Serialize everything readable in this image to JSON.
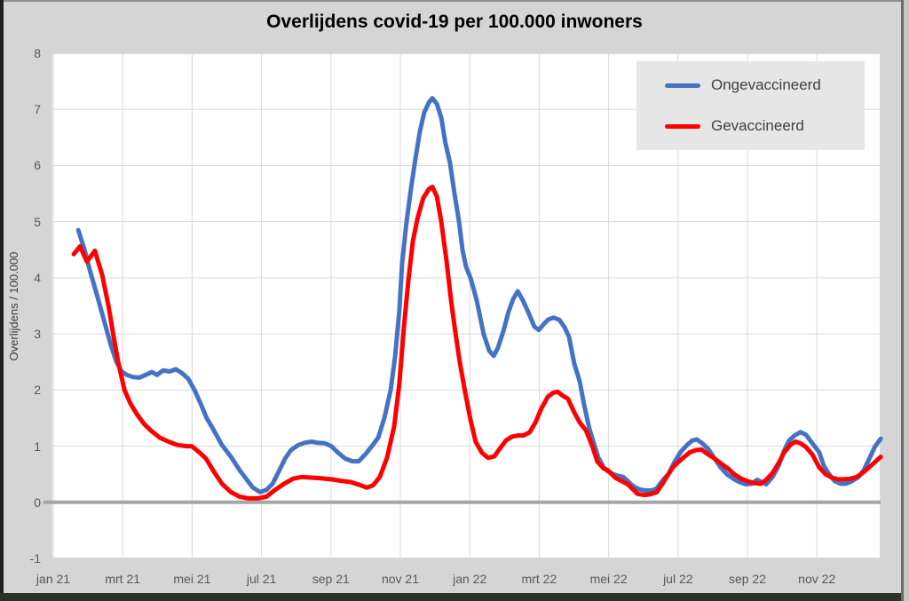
{
  "chart": {
    "title": "Overlijdens covid-19 per 100.000 inwoners",
    "y_axis": {
      "title": "Overlijdens / 100.000",
      "min": -1,
      "max": 8,
      "tick_step": 1,
      "tick_labels": [
        "8",
        "7",
        "6",
        "5",
        "4",
        "3",
        "2",
        "1",
        "0",
        "-1"
      ]
    },
    "x_axis": {
      "tick_labels": [
        "jan 21",
        "mrt 21",
        "mei 21",
        "jul 21",
        "sep 21",
        "nov 21",
        "jan 22",
        "mrt 22",
        "mei 22",
        "jul 22",
        "sep 22",
        "nov 22"
      ],
      "tick_positions": [
        0,
        2,
        4,
        6,
        8,
        10,
        12,
        14,
        16,
        18,
        20,
        22
      ]
    },
    "legend": {
      "items": [
        {
          "label": "Ongevaccineerd",
          "color": "#4472C4"
        },
        {
          "label": "Gevaccineerd",
          "color": "#FF0000"
        }
      ]
    },
    "colors": {
      "canvas_bg": "#d5d5d5",
      "plot_bg": "#ffffff",
      "gridline": "#d9d9d9",
      "zero_line": "#a6a6a6",
      "tick_text": "#595959",
      "legend_bg": "#e6e6e6"
    }
  },
  "chart_data": {
    "type": "line",
    "title": "Overlijdens covid-19 per 100.000 inwoners",
    "xlabel": "",
    "ylabel": "Overlijdens / 100.000",
    "ylim": [
      -1,
      8
    ],
    "xlim_months": [
      -0.05,
      23.85
    ],
    "x_unit": "months (0 = jan 2021 tick, 2 = mrt 2021, ... 22 = nov 2022)",
    "x_tick_positions": [
      0,
      2,
      4,
      6,
      8,
      10,
      12,
      14,
      16,
      18,
      20,
      22
    ],
    "x_tick_labels": [
      "jan 21",
      "mrt 21",
      "mei 21",
      "jul 21",
      "sep 21",
      "nov 21",
      "jan 22",
      "mrt 22",
      "mei 22",
      "jul 22",
      "sep 22",
      "nov 22"
    ],
    "grid": true,
    "zero_line": true,
    "legend_position": "top-right",
    "series": [
      {
        "name": "Ongevaccineerd",
        "color": "#4472C4",
        "line_width": 5,
        "points": [
          [
            0.72,
            4.85
          ],
          [
            0.9,
            4.5
          ],
          [
            1.07,
            4.1
          ],
          [
            1.28,
            3.65
          ],
          [
            1.48,
            3.2
          ],
          [
            1.66,
            2.8
          ],
          [
            1.82,
            2.5
          ],
          [
            1.97,
            2.33
          ],
          [
            2.12,
            2.27
          ],
          [
            2.3,
            2.23
          ],
          [
            2.48,
            2.22
          ],
          [
            2.66,
            2.27
          ],
          [
            2.84,
            2.32
          ],
          [
            2.99,
            2.27
          ],
          [
            3.17,
            2.35
          ],
          [
            3.35,
            2.33
          ],
          [
            3.53,
            2.37
          ],
          [
            3.71,
            2.3
          ],
          [
            3.89,
            2.2
          ],
          [
            4.07,
            2.0
          ],
          [
            4.25,
            1.75
          ],
          [
            4.42,
            1.5
          ],
          [
            4.6,
            1.31
          ],
          [
            4.86,
            1.02
          ],
          [
            5.12,
            0.81
          ],
          [
            5.37,
            0.57
          ],
          [
            5.58,
            0.4
          ],
          [
            5.75,
            0.26
          ],
          [
            5.96,
            0.18
          ],
          [
            6.14,
            0.22
          ],
          [
            6.32,
            0.33
          ],
          [
            6.5,
            0.55
          ],
          [
            6.68,
            0.78
          ],
          [
            6.85,
            0.93
          ],
          [
            7.06,
            1.02
          ],
          [
            7.24,
            1.06
          ],
          [
            7.44,
            1.08
          ],
          [
            7.62,
            1.06
          ],
          [
            7.83,
            1.05
          ],
          [
            8.01,
            1.0
          ],
          [
            8.21,
            0.88
          ],
          [
            8.41,
            0.78
          ],
          [
            8.62,
            0.73
          ],
          [
            8.8,
            0.73
          ],
          [
            9.0,
            0.86
          ],
          [
            9.18,
            1.0
          ],
          [
            9.36,
            1.15
          ],
          [
            9.54,
            1.5
          ],
          [
            9.72,
            2.0
          ],
          [
            9.85,
            2.6
          ],
          [
            9.97,
            3.4
          ],
          [
            10.05,
            4.26
          ],
          [
            10.18,
            5.0
          ],
          [
            10.31,
            5.6
          ],
          [
            10.43,
            6.1
          ],
          [
            10.56,
            6.6
          ],
          [
            10.69,
            6.95
          ],
          [
            10.82,
            7.12
          ],
          [
            10.92,
            7.2
          ],
          [
            11.05,
            7.1
          ],
          [
            11.18,
            6.85
          ],
          [
            11.3,
            6.4
          ],
          [
            11.43,
            6.05
          ],
          [
            11.56,
            5.5
          ],
          [
            11.69,
            5.0
          ],
          [
            11.79,
            4.5
          ],
          [
            11.89,
            4.2
          ],
          [
            12.02,
            4.0
          ],
          [
            12.2,
            3.6
          ],
          [
            12.4,
            3.0
          ],
          [
            12.56,
            2.7
          ],
          [
            12.69,
            2.61
          ],
          [
            12.81,
            2.75
          ],
          [
            12.97,
            3.05
          ],
          [
            13.12,
            3.4
          ],
          [
            13.25,
            3.62
          ],
          [
            13.38,
            3.76
          ],
          [
            13.53,
            3.6
          ],
          [
            13.71,
            3.35
          ],
          [
            13.86,
            3.13
          ],
          [
            13.99,
            3.07
          ],
          [
            14.14,
            3.18
          ],
          [
            14.27,
            3.26
          ],
          [
            14.42,
            3.29
          ],
          [
            14.58,
            3.25
          ],
          [
            14.73,
            3.12
          ],
          [
            14.86,
            2.95
          ],
          [
            15.01,
            2.47
          ],
          [
            15.17,
            2.15
          ],
          [
            15.29,
            1.75
          ],
          [
            15.45,
            1.3
          ],
          [
            15.58,
            1.04
          ],
          [
            15.7,
            0.8
          ],
          [
            15.86,
            0.62
          ],
          [
            15.98,
            0.55
          ],
          [
            16.14,
            0.5
          ],
          [
            16.29,
            0.47
          ],
          [
            16.42,
            0.45
          ],
          [
            16.55,
            0.38
          ],
          [
            16.7,
            0.29
          ],
          [
            16.88,
            0.23
          ],
          [
            17.06,
            0.21
          ],
          [
            17.24,
            0.21
          ],
          [
            17.39,
            0.25
          ],
          [
            17.57,
            0.4
          ],
          [
            17.72,
            0.5
          ],
          [
            17.9,
            0.72
          ],
          [
            18.08,
            0.9
          ],
          [
            18.26,
            1.02
          ],
          [
            18.41,
            1.1
          ],
          [
            18.54,
            1.12
          ],
          [
            18.7,
            1.05
          ],
          [
            18.87,
            0.95
          ],
          [
            19.05,
            0.78
          ],
          [
            19.23,
            0.62
          ],
          [
            19.41,
            0.5
          ],
          [
            19.59,
            0.42
          ],
          [
            19.77,
            0.36
          ],
          [
            19.95,
            0.32
          ],
          [
            20.13,
            0.33
          ],
          [
            20.28,
            0.4
          ],
          [
            20.41,
            0.36
          ],
          [
            20.54,
            0.32
          ],
          [
            20.72,
            0.45
          ],
          [
            20.9,
            0.65
          ],
          [
            21.05,
            0.91
          ],
          [
            21.2,
            1.1
          ],
          [
            21.38,
            1.2
          ],
          [
            21.53,
            1.25
          ],
          [
            21.69,
            1.2
          ],
          [
            21.87,
            1.05
          ],
          [
            22.07,
            0.89
          ],
          [
            22.2,
            0.65
          ],
          [
            22.33,
            0.52
          ],
          [
            22.51,
            0.38
          ],
          [
            22.69,
            0.33
          ],
          [
            22.84,
            0.33
          ],
          [
            23.02,
            0.38
          ],
          [
            23.2,
            0.45
          ],
          [
            23.35,
            0.57
          ],
          [
            23.53,
            0.8
          ],
          [
            23.68,
            1.0
          ],
          [
            23.84,
            1.13
          ]
        ]
      },
      {
        "name": "Gevaccineerd",
        "color": "#FF0000",
        "line_width": 5,
        "points": [
          [
            0.59,
            4.42
          ],
          [
            0.77,
            4.56
          ],
          [
            0.97,
            4.29
          ],
          [
            1.2,
            4.48
          ],
          [
            1.41,
            4.05
          ],
          [
            1.59,
            3.5
          ],
          [
            1.74,
            2.95
          ],
          [
            1.87,
            2.5
          ],
          [
            2.05,
            2.0
          ],
          [
            2.23,
            1.75
          ],
          [
            2.43,
            1.55
          ],
          [
            2.61,
            1.4
          ],
          [
            2.81,
            1.28
          ],
          [
            3.07,
            1.15
          ],
          [
            3.32,
            1.08
          ],
          [
            3.58,
            1.02
          ],
          [
            3.84,
            1.0
          ],
          [
            3.99,
            1.0
          ],
          [
            4.19,
            0.9
          ],
          [
            4.4,
            0.78
          ],
          [
            4.6,
            0.57
          ],
          [
            4.86,
            0.33
          ],
          [
            5.12,
            0.18
          ],
          [
            5.37,
            0.1
          ],
          [
            5.63,
            0.07
          ],
          [
            5.88,
            0.07
          ],
          [
            6.14,
            0.1
          ],
          [
            6.39,
            0.22
          ],
          [
            6.65,
            0.33
          ],
          [
            6.91,
            0.42
          ],
          [
            7.16,
            0.45
          ],
          [
            7.42,
            0.44
          ],
          [
            7.67,
            0.43
          ],
          [
            8.01,
            0.41
          ],
          [
            8.31,
            0.38
          ],
          [
            8.57,
            0.36
          ],
          [
            8.82,
            0.31
          ],
          [
            9.03,
            0.26
          ],
          [
            9.21,
            0.3
          ],
          [
            9.41,
            0.45
          ],
          [
            9.62,
            0.8
          ],
          [
            9.82,
            1.35
          ],
          [
            9.97,
            2.1
          ],
          [
            10.1,
            3.1
          ],
          [
            10.23,
            3.95
          ],
          [
            10.36,
            4.65
          ],
          [
            10.49,
            5.05
          ],
          [
            10.66,
            5.42
          ],
          [
            10.82,
            5.58
          ],
          [
            10.92,
            5.62
          ],
          [
            11.05,
            5.45
          ],
          [
            11.18,
            5.0
          ],
          [
            11.33,
            4.3
          ],
          [
            11.46,
            3.6
          ],
          [
            11.59,
            3.0
          ],
          [
            11.71,
            2.5
          ],
          [
            11.87,
            1.95
          ],
          [
            12.02,
            1.47
          ],
          [
            12.17,
            1.08
          ],
          [
            12.35,
            0.88
          ],
          [
            12.53,
            0.79
          ],
          [
            12.71,
            0.82
          ],
          [
            12.86,
            0.95
          ],
          [
            13.04,
            1.1
          ],
          [
            13.22,
            1.17
          ],
          [
            13.4,
            1.19
          ],
          [
            13.55,
            1.19
          ],
          [
            13.73,
            1.25
          ],
          [
            13.89,
            1.42
          ],
          [
            14.07,
            1.68
          ],
          [
            14.25,
            1.88
          ],
          [
            14.4,
            1.95
          ],
          [
            14.53,
            1.97
          ],
          [
            14.68,
            1.9
          ],
          [
            14.83,
            1.84
          ],
          [
            15.01,
            1.6
          ],
          [
            15.17,
            1.42
          ],
          [
            15.35,
            1.28
          ],
          [
            15.53,
            1.0
          ],
          [
            15.68,
            0.72
          ],
          [
            15.86,
            0.6
          ],
          [
            15.98,
            0.57
          ],
          [
            16.19,
            0.44
          ],
          [
            16.37,
            0.38
          ],
          [
            16.55,
            0.32
          ],
          [
            16.7,
            0.23
          ],
          [
            16.83,
            0.15
          ],
          [
            17.01,
            0.13
          ],
          [
            17.19,
            0.14
          ],
          [
            17.39,
            0.18
          ],
          [
            17.57,
            0.35
          ],
          [
            17.72,
            0.5
          ],
          [
            17.85,
            0.62
          ],
          [
            17.98,
            0.7
          ],
          [
            18.16,
            0.8
          ],
          [
            18.34,
            0.89
          ],
          [
            18.52,
            0.93
          ],
          [
            18.67,
            0.94
          ],
          [
            18.85,
            0.86
          ],
          [
            19.05,
            0.78
          ],
          [
            19.26,
            0.68
          ],
          [
            19.44,
            0.6
          ],
          [
            19.62,
            0.5
          ],
          [
            19.82,
            0.42
          ],
          [
            20.03,
            0.37
          ],
          [
            20.21,
            0.34
          ],
          [
            20.38,
            0.33
          ],
          [
            20.54,
            0.4
          ],
          [
            20.72,
            0.52
          ],
          [
            20.9,
            0.7
          ],
          [
            21.05,
            0.88
          ],
          [
            21.23,
            1.02
          ],
          [
            21.38,
            1.08
          ],
          [
            21.53,
            1.05
          ],
          [
            21.69,
            0.98
          ],
          [
            21.87,
            0.85
          ],
          [
            22.07,
            0.62
          ],
          [
            22.25,
            0.5
          ],
          [
            22.43,
            0.44
          ],
          [
            22.61,
            0.41
          ],
          [
            22.79,
            0.41
          ],
          [
            22.97,
            0.42
          ],
          [
            23.15,
            0.45
          ],
          [
            23.33,
            0.53
          ],
          [
            23.5,
            0.62
          ],
          [
            23.68,
            0.72
          ],
          [
            23.84,
            0.81
          ]
        ]
      }
    ]
  }
}
